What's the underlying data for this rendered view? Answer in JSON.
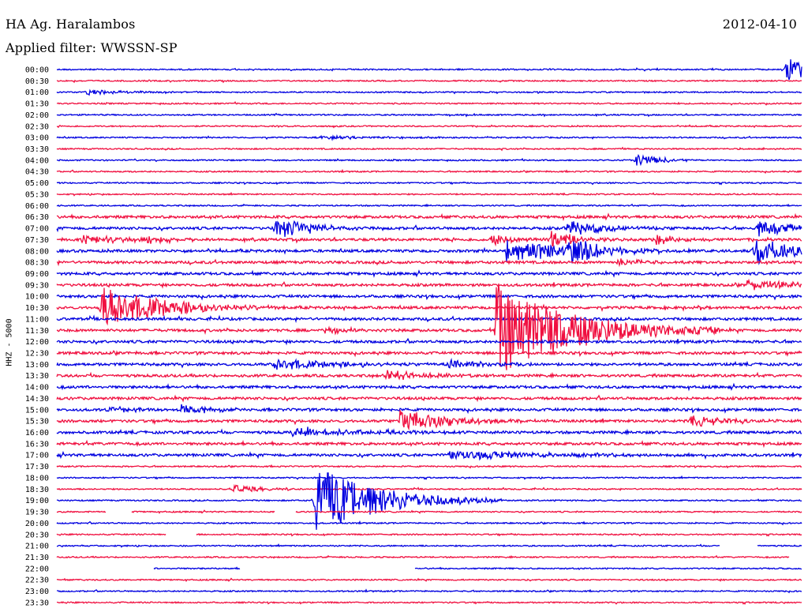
{
  "header": {
    "station": "HA Ag. Haralambos",
    "date": "2012-04-10",
    "filter_text": "Applied filter: WWSSN-SP"
  },
  "chart_data": {
    "type": "line",
    "title": "HA Ag. Haralambos",
    "subtitle": "Applied filter: WWSSN-SP",
    "ylabel": "HHZ - 5000",
    "xlabel": "",
    "row_labels": [
      "00:00",
      "00:30",
      "01:00",
      "01:30",
      "02:00",
      "02:30",
      "03:00",
      "03:30",
      "04:00",
      "04:30",
      "05:00",
      "05:30",
      "06:00",
      "06:30",
      "07:00",
      "07:30",
      "08:00",
      "08:30",
      "09:00",
      "09:30",
      "10:00",
      "10:30",
      "11:00",
      "11:30",
      "12:00",
      "12:30",
      "13:00",
      "13:30",
      "14:00",
      "14:30",
      "15:00",
      "15:30",
      "16:00",
      "16:30",
      "17:00",
      "17:30",
      "18:00",
      "18:30",
      "19:00",
      "19:30",
      "20:00",
      "20:30",
      "21:00",
      "21:30",
      "22:00",
      "22:30",
      "23:00",
      "23:30"
    ],
    "colors": {
      "even_rows": "#0000e0",
      "odd_rows": "#f01040"
    },
    "row_minutes": 30,
    "noise_level": [
      1,
      1,
      1,
      1,
      1,
      1,
      1,
      1,
      1,
      1,
      1,
      1,
      1,
      2,
      2,
      2,
      2,
      2,
      2,
      2,
      2,
      2,
      2,
      2,
      2,
      2,
      2,
      2,
      2,
      2,
      2,
      2,
      2,
      2,
      2,
      1,
      1,
      1,
      1,
      1,
      1,
      1,
      1,
      1,
      1,
      1,
      1,
      1
    ],
    "events": [
      {
        "row": "00:00",
        "minute": 29.3,
        "amp": 16,
        "dur": 1.5
      },
      {
        "row": "01:00",
        "minute": 1.2,
        "amp": 3,
        "dur": 1.5
      },
      {
        "row": "03:00",
        "minute": 10.5,
        "amp": 2,
        "dur": 3
      },
      {
        "row": "04:00",
        "minute": 23.3,
        "amp": 8,
        "dur": 1
      },
      {
        "row": "07:00",
        "minute": 8.8,
        "amp": 14,
        "dur": 1.5
      },
      {
        "row": "07:00",
        "minute": 20.5,
        "amp": 10,
        "dur": 1.5
      },
      {
        "row": "07:00",
        "minute": 28.2,
        "amp": 10,
        "dur": 1.5
      },
      {
        "row": "07:30",
        "minute": 1.0,
        "amp": 5,
        "dur": 2
      },
      {
        "row": "07:30",
        "minute": 3.5,
        "amp": 6,
        "dur": 1
      },
      {
        "row": "07:30",
        "minute": 17.5,
        "amp": 7,
        "dur": 1
      },
      {
        "row": "07:30",
        "minute": 19.9,
        "amp": 12,
        "dur": 1
      },
      {
        "row": "07:30",
        "minute": 24.1,
        "amp": 6,
        "dur": 1
      },
      {
        "row": "08:00",
        "minute": 18.1,
        "amp": 16,
        "dur": 2.5
      },
      {
        "row": "08:00",
        "minute": 20.5,
        "amp": 16,
        "dur": 1.5
      },
      {
        "row": "08:00",
        "minute": 28.1,
        "amp": 18,
        "dur": 1.5
      },
      {
        "row": "08:30",
        "minute": 22.6,
        "amp": 6,
        "dur": 1
      },
      {
        "row": "09:30",
        "minute": 27.8,
        "amp": 6,
        "dur": 2
      },
      {
        "row": "10:30",
        "minute": 1.8,
        "amp": 26,
        "dur": 2.5
      },
      {
        "row": "11:30",
        "minute": 17.7,
        "amp": 60,
        "dur": 3
      },
      {
        "row": "11:30",
        "minute": 10.8,
        "amp": 5,
        "dur": 1
      },
      {
        "row": "13:00",
        "minute": 8.7,
        "amp": 7,
        "dur": 2.5
      },
      {
        "row": "13:00",
        "minute": 15.7,
        "amp": 6,
        "dur": 1.5
      },
      {
        "row": "13:30",
        "minute": 13.2,
        "amp": 7,
        "dur": 1.5
      },
      {
        "row": "15:00",
        "minute": 5.0,
        "amp": 8,
        "dur": 1
      },
      {
        "row": "15:00",
        "minute": 2.1,
        "amp": 4,
        "dur": 1
      },
      {
        "row": "15:30",
        "minute": 13.8,
        "amp": 14,
        "dur": 2
      },
      {
        "row": "15:30",
        "minute": 25.5,
        "amp": 8,
        "dur": 1.5
      },
      {
        "row": "16:00",
        "minute": 9.5,
        "amp": 5,
        "dur": 3
      },
      {
        "row": "17:00",
        "minute": 15.8,
        "amp": 6,
        "dur": 4
      },
      {
        "row": "18:30",
        "minute": 7.0,
        "amp": 6,
        "dur": 1
      },
      {
        "row": "19:00",
        "minute": 10.4,
        "amp": 46,
        "dur": 2.5
      }
    ],
    "gaps": [
      {
        "row": "19:30",
        "start": 2.0,
        "end": 3.0
      },
      {
        "row": "19:30",
        "start": 8.8,
        "end": 9.6
      },
      {
        "row": "20:30",
        "start": 4.4,
        "end": 5.6
      },
      {
        "row": "21:00",
        "start": 26.7,
        "end": 28.2
      },
      {
        "row": "21:30",
        "start": 29.5,
        "end": 30.0
      },
      {
        "row": "22:00",
        "start": 0.0,
        "end": 3.9
      },
      {
        "row": "22:00",
        "start": 7.4,
        "end": 14.4
      }
    ]
  }
}
